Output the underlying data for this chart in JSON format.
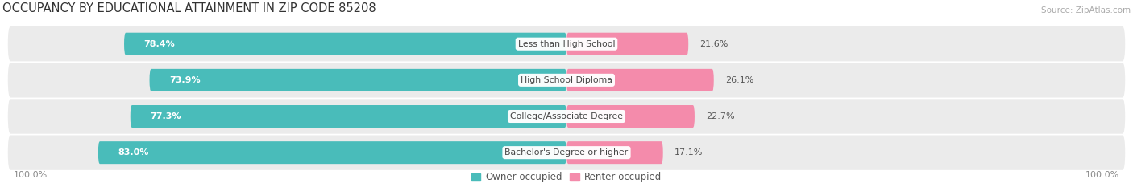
{
  "title": "OCCUPANCY BY EDUCATIONAL ATTAINMENT IN ZIP CODE 85208",
  "source": "Source: ZipAtlas.com",
  "categories": [
    "Less than High School",
    "High School Diploma",
    "College/Associate Degree",
    "Bachelor's Degree or higher"
  ],
  "owner_pct": [
    78.4,
    73.9,
    77.3,
    83.0
  ],
  "renter_pct": [
    21.6,
    26.1,
    22.7,
    17.1
  ],
  "owner_color": "#49BCBA",
  "renter_color": "#F48BAB",
  "bg_row_color": "#EBEBEB",
  "title_fontsize": 10.5,
  "source_fontsize": 7.5,
  "label_fontsize": 8,
  "tick_fontsize": 8,
  "legend_fontsize": 8.5,
  "axis_label_left": "100.0%",
  "axis_label_right": "100.0%",
  "owner_label": "Owner-occupied",
  "renter_label": "Renter-occupied"
}
